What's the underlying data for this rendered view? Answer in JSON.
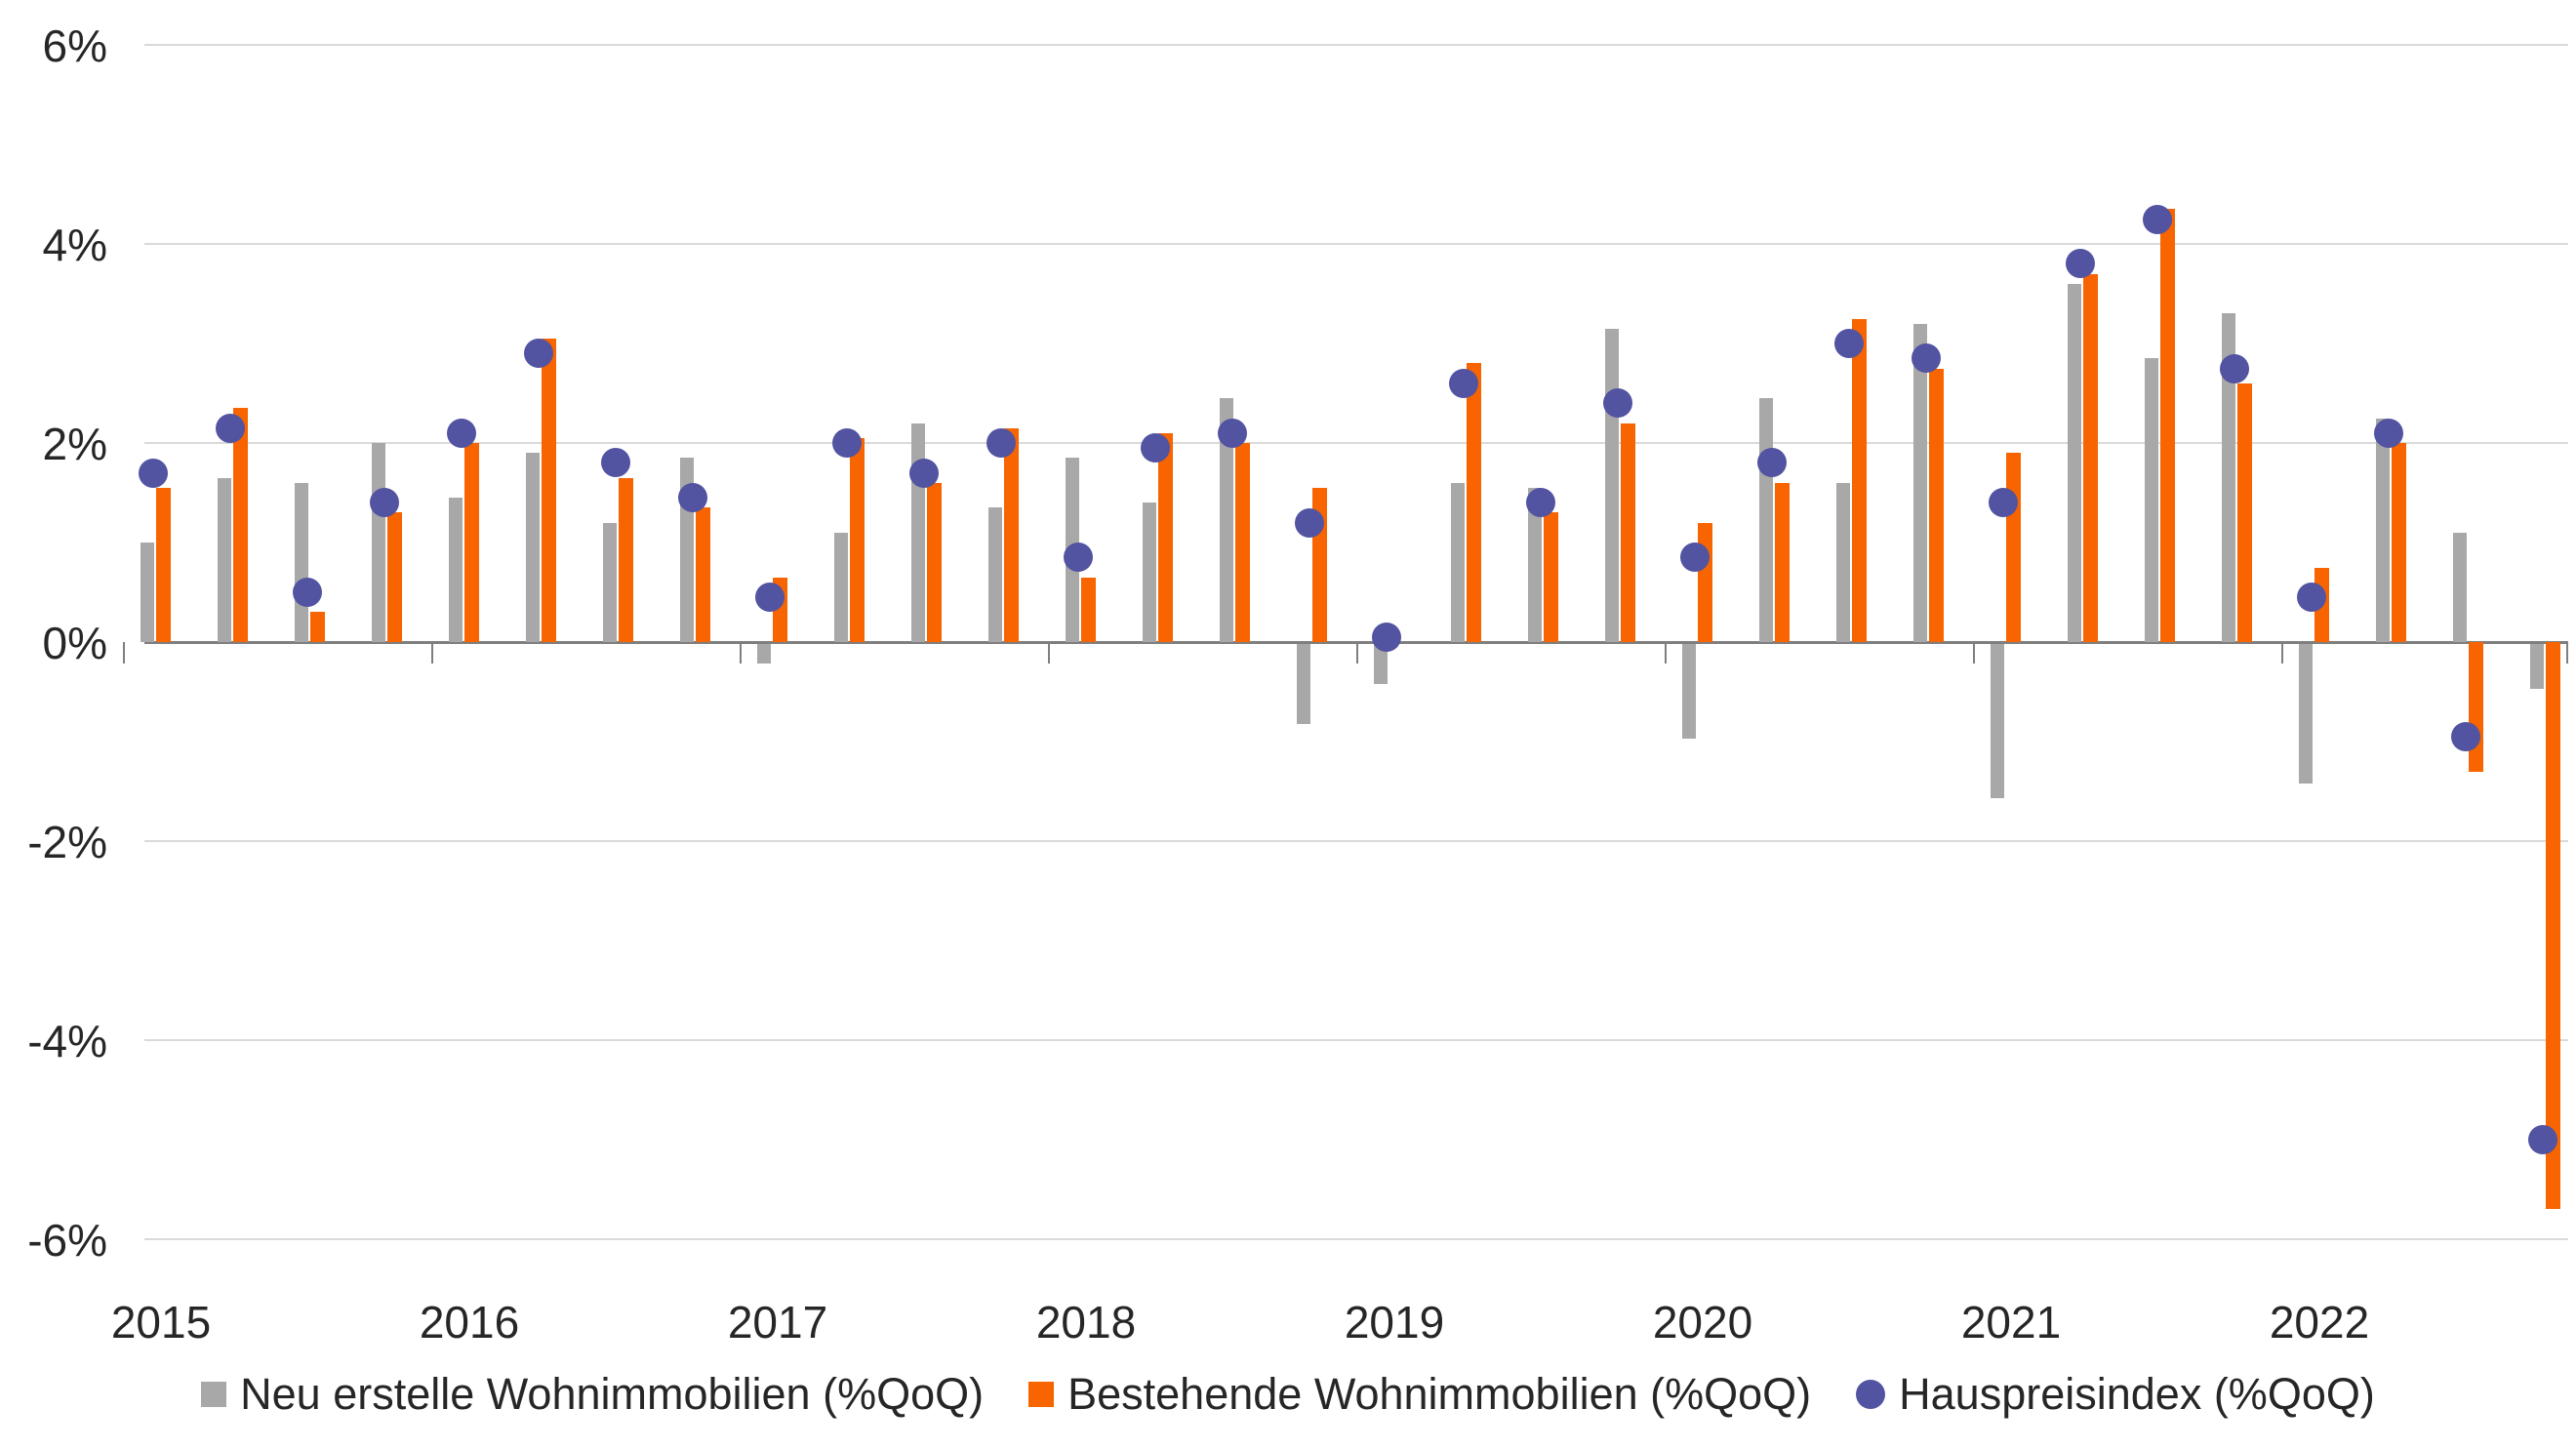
{
  "chart_data": {
    "type": "bar",
    "subtype": "grouped-bars-with-scatter-overlay",
    "title": "",
    "xlabel": "",
    "ylabel": "",
    "ylim": [
      -6,
      6
    ],
    "grid": "horizontal",
    "legend_position": "bottom",
    "y_ticks": [
      {
        "value": 6,
        "label": "6%"
      },
      {
        "value": 4,
        "label": "4%"
      },
      {
        "value": 2,
        "label": "2%"
      },
      {
        "value": 0,
        "label": "0%"
      },
      {
        "value": -2,
        "label": "-2%"
      },
      {
        "value": -4,
        "label": "-4%"
      },
      {
        "value": -6,
        "label": "-6%"
      }
    ],
    "year_labels": [
      "2015",
      "2016",
      "2017",
      "2018",
      "2019",
      "2020",
      "2021",
      "2022"
    ],
    "categories": [
      "2015Q1",
      "2015Q2",
      "2015Q3",
      "2015Q4",
      "2016Q1",
      "2016Q2",
      "2016Q3",
      "2016Q4",
      "2017Q1",
      "2017Q2",
      "2017Q3",
      "2017Q4",
      "2018Q1",
      "2018Q2",
      "2018Q3",
      "2018Q4",
      "2019Q1",
      "2019Q2",
      "2019Q3",
      "2019Q4",
      "2020Q1",
      "2020Q2",
      "2020Q3",
      "2020Q4",
      "2021Q1",
      "2021Q2",
      "2021Q3",
      "2021Q4",
      "2022Q1",
      "2022Q2",
      "2022Q3",
      "2022Q4"
    ],
    "series": [
      {
        "name": "Neu erstelle Wohnimmobilien (%QoQ)",
        "type": "bar",
        "color": "#a8a8a8",
        "values": [
          1.0,
          1.65,
          1.6,
          2.0,
          1.45,
          1.9,
          1.2,
          1.85,
          -0.2,
          1.1,
          2.2,
          1.35,
          1.85,
          1.4,
          2.45,
          -0.8,
          -0.4,
          1.6,
          1.55,
          3.15,
          -0.95,
          2.45,
          1.6,
          3.2,
          -1.55,
          3.6,
          2.85,
          3.3,
          -1.4,
          2.25,
          1.1,
          -0.45
        ]
      },
      {
        "name": "Bestehende Wohnimmobilien (%QoQ)",
        "type": "bar",
        "color": "#f76400",
        "values": [
          1.55,
          2.35,
          0.3,
          1.3,
          2.0,
          3.05,
          1.65,
          1.35,
          0.65,
          2.05,
          1.6,
          2.15,
          0.65,
          2.1,
          2.0,
          1.55,
          0.0,
          2.8,
          1.3,
          2.2,
          1.2,
          1.6,
          3.25,
          2.75,
          1.9,
          3.7,
          4.35,
          2.6,
          0.75,
          2.0,
          -1.3,
          -5.7
        ]
      },
      {
        "name": "Hauspreisindex (%QoQ)",
        "type": "scatter",
        "color": "#5253a1",
        "values": [
          1.7,
          2.15,
          0.5,
          1.4,
          2.1,
          2.9,
          1.8,
          1.45,
          0.45,
          2.0,
          1.7,
          2.0,
          0.85,
          1.95,
          2.1,
          1.2,
          0.05,
          2.6,
          1.4,
          2.4,
          0.85,
          1.8,
          3.0,
          2.85,
          1.4,
          3.8,
          4.25,
          2.75,
          0.45,
          2.1,
          -0.95,
          -5.0
        ]
      }
    ]
  },
  "legend": {
    "items": [
      {
        "label": "Neu erstelle Wohnimmobilien (%QoQ)",
        "shape": "square",
        "color": "#a8a8a8",
        "icon": "gray-square-swatch-icon"
      },
      {
        "label": "Bestehende Wohnimmobilien (%QoQ)",
        "shape": "square",
        "color": "#f76400",
        "icon": "orange-square-swatch-icon"
      },
      {
        "label": "Hauspreisindex (%QoQ)",
        "shape": "circle",
        "color": "#5253a1",
        "icon": "blue-circle-swatch-icon"
      }
    ]
  },
  "colors": {
    "background": "#ffffff",
    "gridline": "#dadada",
    "axis": "#7f7f7f",
    "text": "#262626",
    "bar_new": "#a8a8a8",
    "bar_existing": "#f76400",
    "dot_index": "#5253a1"
  }
}
